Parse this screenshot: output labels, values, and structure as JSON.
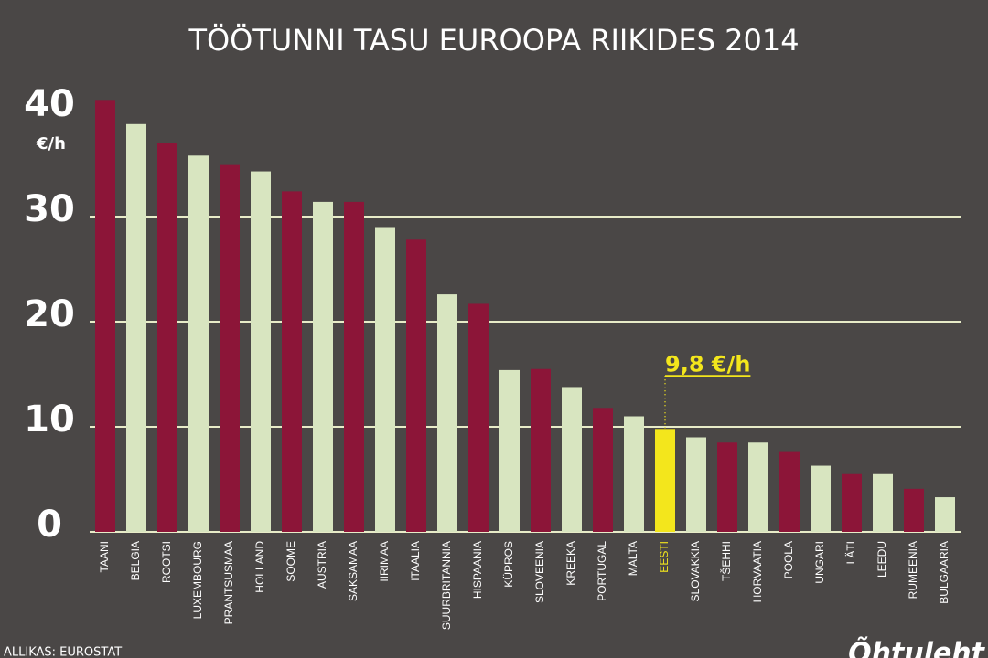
{
  "chart_data": {
    "type": "bar",
    "title": "TÖÖTUNNI TASU EUROOPA RIIKIDES 2014",
    "y_label": "€/h",
    "source": "ALLIKAS: EUROSTAT",
    "logo": "Õhtuleht",
    "categories": [
      "TAANI",
      "BELGIA",
      "ROOTSI",
      "LUXEMBOURG",
      "PRANTSUSMAA",
      "HOLLAND",
      "SOOME",
      "AUSTRIA",
      "SAKSAMAA",
      "IIRIMAA",
      "ITAALIA",
      "SUURBRITANNIA",
      "HISPAANIA",
      "KÜPROS",
      "SLOVEENIA",
      "KREEKA",
      "PORTUGAL",
      "MALTA",
      "EESTI",
      "SLOVAKKIA",
      "TŠEHHI",
      "HORVAATIA",
      "POOLA",
      "UNGARI",
      "LÄTI",
      "LEEDU",
      "RUMEENIA",
      "BULGAARIA"
    ],
    "values": [
      41.1,
      38.8,
      37.0,
      35.8,
      34.9,
      34.3,
      32.4,
      31.4,
      31.4,
      29.0,
      27.8,
      22.6,
      21.7,
      15.4,
      15.5,
      13.7,
      11.8,
      11.0,
      9.8,
      9.0,
      8.5,
      8.5,
      7.6,
      6.3,
      5.5,
      5.5,
      4.1,
      3.3
    ],
    "value_labels": [
      null,
      null,
      null,
      null,
      null,
      null,
      null,
      null,
      null,
      null,
      null,
      null,
      null,
      null,
      null,
      null,
      null,
      null,
      "9,8 €/h",
      null,
      null,
      null,
      null,
      null,
      null,
      null,
      null,
      null
    ],
    "colors": [
      "#8c1538",
      "#d8e5c0",
      "#8c1538",
      "#d8e5c0",
      "#8c1538",
      "#d8e5c0",
      "#8c1538",
      "#d8e5c0",
      "#8c1538",
      "#d8e5c0",
      "#8c1538",
      "#d8e5c0",
      "#8c1538",
      "#d8e5c0",
      "#8c1538",
      "#d8e5c0",
      "#8c1538",
      "#d8e5c0",
      "#f3e61c",
      "#d8e5c0",
      "#8c1538",
      "#d8e5c0",
      "#8c1538",
      "#d8e5c0",
      "#8c1538",
      "#d8e5c0",
      "#8c1538",
      "#d8e5c0"
    ],
    "highlight_color": "#f3e61c",
    "ylim": [
      0,
      40
    ],
    "yticks": [
      0,
      10,
      20,
      30,
      40
    ],
    "grid": true
  }
}
